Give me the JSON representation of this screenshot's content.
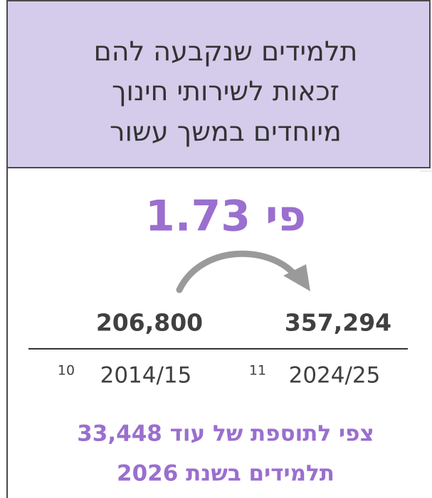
{
  "header": {
    "title_lines": [
      "תלמידים שנקבעה להם",
      "זכאות לשירותי חינוך",
      "מיוחדים במשך עשור"
    ]
  },
  "multiplier": "פי 1.73",
  "comparison": [
    {
      "value": "357,294",
      "year": "2024/25",
      "footnote": "11"
    },
    {
      "value": "206,800",
      "year": "2014/15",
      "footnote": "10"
    }
  ],
  "note_lines": [
    "צפי לתוספת של עוד 33,448",
    "תלמידים בשנת 2026"
  ]
}
